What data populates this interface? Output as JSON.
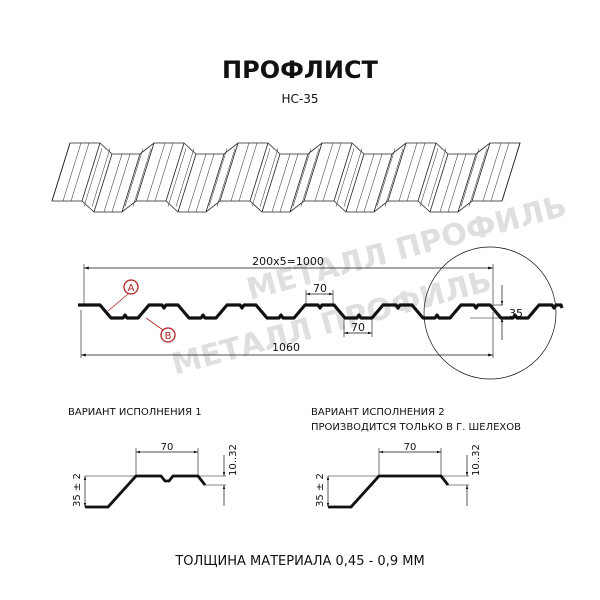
{
  "header": {
    "title": "ПРОФЛИСТ",
    "subtitle": "НС-35"
  },
  "profile": {
    "pitch_dim": "200x5=1000",
    "width_dim": "1060",
    "top_rib_dim": "70",
    "bottom_rib_dim": "70",
    "height_dim": "35",
    "marker_a": "A",
    "marker_b": "B",
    "marker_color": "#b22222"
  },
  "variant1": {
    "label": "ВАРИАНТ ИСПОЛНЕНИЯ 1",
    "width_dim": "70",
    "height_dim": "35 ± 2",
    "step_dim": "10..32"
  },
  "variant2": {
    "label_line1": "ВАРИАНТ ИСПОЛНЕНИЯ 2",
    "label_line2": "ПРОИЗВОДИТСЯ ТОЛЬКО В Г. ШЕЛЕХОВ",
    "width_dim": "70",
    "height_dim": "35 ± 2",
    "step_dim": "10..32"
  },
  "footer": {
    "thickness": "ТОЛЩИНА МАТЕРИАЛА 0,45 - 0,9 ММ"
  },
  "watermark": {
    "text": "МЕТАЛЛ ПРОФИЛЬ"
  }
}
